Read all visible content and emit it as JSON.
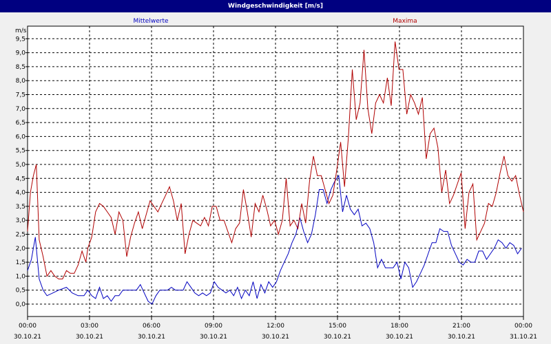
{
  "window": {
    "title": "Windgeschwindigkeit [m/s]"
  },
  "chart_data": {
    "type": "line",
    "title": "Windgeschwindigkeit [m/s]",
    "ylabel": "m/s",
    "ylim": [
      -0.5,
      9.7
    ],
    "grid": true,
    "colors": {
      "Mittelwerte": "#0000c0",
      "Maxima": "#b00000"
    },
    "y_ticks": [
      "0,0",
      "0,5",
      "1,0",
      "1,5",
      "2,0",
      "2,5",
      "3,0",
      "3,5",
      "4,0",
      "4,5",
      "5,0",
      "5,5",
      "6,0",
      "6,5",
      "7,0",
      "7,5",
      "8,0",
      "8,5",
      "9,0",
      "9,5"
    ],
    "x_ticks": [
      {
        "time": "00:00",
        "date": "30.10.21"
      },
      {
        "time": "03:00",
        "date": "30.10.21"
      },
      {
        "time": "06:00",
        "date": "30.10.21"
      },
      {
        "time": "09:00",
        "date": "30.10.21"
      },
      {
        "time": "12:00",
        "date": "30.10.21"
      },
      {
        "time": "15:00",
        "date": "30.10.21"
      },
      {
        "time": "18:00",
        "date": "30.10.21"
      },
      {
        "time": "21:00",
        "date": "30.10.21"
      },
      {
        "time": "00:00",
        "date": "31.10.21"
      }
    ],
    "series": [
      {
        "name": "Mittelwerte",
        "points": [
          [
            0,
            1.2
          ],
          [
            0.2,
            1.6
          ],
          [
            0.4,
            2.4
          ],
          [
            0.6,
            0.9
          ],
          [
            0.8,
            0.5
          ],
          [
            1,
            0.3
          ],
          [
            1.3,
            0.4
          ],
          [
            1.6,
            0.5
          ],
          [
            2,
            0.6
          ],
          [
            2.3,
            0.4
          ],
          [
            2.6,
            0.3
          ],
          [
            2.9,
            0.3
          ],
          [
            3.1,
            0.5
          ],
          [
            3.3,
            0.3
          ],
          [
            3.5,
            0.2
          ],
          [
            3.7,
            0.6
          ],
          [
            3.9,
            0.2
          ],
          [
            4.1,
            0.3
          ],
          [
            4.3,
            0.1
          ],
          [
            4.5,
            0.3
          ],
          [
            4.7,
            0.3
          ],
          [
            4.9,
            0.5
          ],
          [
            5.2,
            0.5
          ],
          [
            5.4,
            0.5
          ],
          [
            5.6,
            0.5
          ],
          [
            5.8,
            0.7
          ],
          [
            6,
            0.4
          ],
          [
            6.2,
            0.1
          ],
          [
            6.4,
            0.0
          ],
          [
            6.6,
            0.3
          ],
          [
            6.8,
            0.5
          ],
          [
            7,
            0.5
          ],
          [
            7.2,
            0.5
          ],
          [
            7.4,
            0.6
          ],
          [
            7.6,
            0.5
          ],
          [
            7.8,
            0.5
          ],
          [
            8,
            0.5
          ],
          [
            8.2,
            0.8
          ],
          [
            8.4,
            0.6
          ],
          [
            8.6,
            0.4
          ],
          [
            8.8,
            0.3
          ],
          [
            9,
            0.4
          ],
          [
            9.2,
            0.3
          ],
          [
            9.4,
            0.4
          ],
          [
            9.6,
            0.8
          ],
          [
            9.8,
            0.6
          ],
          [
            10,
            0.5
          ],
          [
            10.2,
            0.4
          ],
          [
            10.4,
            0.5
          ],
          [
            10.6,
            0.3
          ],
          [
            10.8,
            0.6
          ],
          [
            11,
            0.2
          ],
          [
            11.2,
            0.5
          ],
          [
            11.4,
            0.3
          ],
          [
            11.6,
            0.8
          ],
          [
            11.8,
            0.2
          ],
          [
            12,
            0.7
          ],
          [
            12.2,
            0.4
          ],
          [
            12.4,
            0.8
          ],
          [
            12.6,
            0.6
          ],
          [
            12.8,
            0.8
          ],
          [
            13,
            1.2
          ],
          [
            13.2,
            1.5
          ],
          [
            13.4,
            1.8
          ],
          [
            13.6,
            2.2
          ],
          [
            13.8,
            2.5
          ],
          [
            14,
            3.1
          ],
          [
            14.2,
            2.6
          ],
          [
            14.4,
            2.2
          ],
          [
            14.6,
            2.5
          ],
          [
            14.8,
            3.2
          ],
          [
            15,
            4.1
          ],
          [
            15.2,
            4.1
          ],
          [
            15.4,
            3.6
          ],
          [
            15.6,
            4.1
          ],
          [
            15.8,
            4.4
          ],
          [
            16,
            4.6
          ],
          [
            16.2,
            3.3
          ],
          [
            16.4,
            3.9
          ],
          [
            16.6,
            3.4
          ],
          [
            16.8,
            3.2
          ],
          [
            17,
            3.4
          ],
          [
            17.2,
            2.8
          ],
          [
            17.4,
            2.9
          ],
          [
            17.6,
            2.7
          ],
          [
            17.8,
            2.2
          ],
          [
            18,
            1.3
          ],
          [
            18.2,
            1.6
          ],
          [
            18.4,
            1.3
          ],
          [
            18.6,
            1.3
          ],
          [
            18.8,
            1.3
          ],
          [
            19,
            1.5
          ],
          [
            19.2,
            0.9
          ],
          [
            19.4,
            1.5
          ],
          [
            19.6,
            1.3
          ],
          [
            19.8,
            0.6
          ],
          [
            20,
            0.8
          ],
          [
            20.2,
            1.1
          ],
          [
            20.4,
            1.4
          ],
          [
            20.6,
            1.8
          ],
          [
            20.8,
            2.2
          ],
          [
            21,
            2.2
          ],
          [
            21.2,
            2.7
          ],
          [
            21.4,
            2.6
          ],
          [
            21.6,
            2.6
          ],
          [
            21.8,
            2.1
          ],
          [
            22,
            1.8
          ],
          [
            22.2,
            1.5
          ],
          [
            22.4,
            1.4
          ],
          [
            22.6,
            1.6
          ],
          [
            22.8,
            1.5
          ],
          [
            23,
            1.5
          ],
          [
            23.2,
            1.9
          ],
          [
            23.4,
            1.9
          ],
          [
            23.6,
            1.6
          ],
          [
            23.8,
            1.8
          ],
          [
            24,
            2.0
          ],
          [
            24.2,
            2.3
          ],
          [
            24.4,
            2.2
          ],
          [
            24.6,
            2.0
          ],
          [
            24.8,
            2.2
          ],
          [
            25,
            2.1
          ],
          [
            25.2,
            1.8
          ],
          [
            25.4,
            2.0
          ]
        ]
      },
      {
        "name": "Maxima",
        "points": [
          [
            0,
            2.6
          ],
          [
            0.15,
            4.0
          ],
          [
            0.3,
            4.6
          ],
          [
            0.45,
            5.0
          ],
          [
            0.6,
            2.3
          ],
          [
            0.8,
            1.7
          ],
          [
            1,
            1.0
          ],
          [
            1.2,
            1.2
          ],
          [
            1.4,
            1.0
          ],
          [
            1.6,
            0.9
          ],
          [
            1.8,
            0.9
          ],
          [
            2,
            1.2
          ],
          [
            2.2,
            1.1
          ],
          [
            2.4,
            1.1
          ],
          [
            2.6,
            1.4
          ],
          [
            2.8,
            1.9
          ],
          [
            3,
            1.5
          ],
          [
            3.1,
            2.0
          ],
          [
            3.3,
            2.4
          ],
          [
            3.5,
            3.3
          ],
          [
            3.7,
            3.6
          ],
          [
            3.9,
            3.5
          ],
          [
            4.1,
            3.3
          ],
          [
            4.3,
            3.1
          ],
          [
            4.5,
            2.5
          ],
          [
            4.7,
            3.3
          ],
          [
            4.9,
            3.0
          ],
          [
            5.1,
            1.7
          ],
          [
            5.3,
            2.4
          ],
          [
            5.5,
            2.9
          ],
          [
            5.7,
            3.3
          ],
          [
            5.9,
            2.7
          ],
          [
            6.1,
            3.2
          ],
          [
            6.3,
            3.7
          ],
          [
            6.5,
            3.5
          ],
          [
            6.7,
            3.3
          ],
          [
            6.9,
            3.6
          ],
          [
            7.1,
            3.9
          ],
          [
            7.3,
            4.2
          ],
          [
            7.5,
            3.7
          ],
          [
            7.7,
            3.0
          ],
          [
            7.9,
            3.6
          ],
          [
            8.1,
            1.8
          ],
          [
            8.3,
            2.5
          ],
          [
            8.5,
            3.0
          ],
          [
            8.7,
            2.9
          ],
          [
            8.9,
            2.8
          ],
          [
            9.1,
            3.1
          ],
          [
            9.3,
            2.8
          ],
          [
            9.5,
            3.5
          ],
          [
            9.7,
            3.5
          ],
          [
            9.9,
            3.0
          ],
          [
            10.1,
            3.0
          ],
          [
            10.3,
            2.6
          ],
          [
            10.5,
            2.2
          ],
          [
            10.7,
            2.7
          ],
          [
            10.9,
            2.9
          ],
          [
            11.1,
            4.1
          ],
          [
            11.3,
            3.3
          ],
          [
            11.5,
            2.4
          ],
          [
            11.7,
            3.6
          ],
          [
            11.9,
            3.3
          ],
          [
            12.1,
            3.9
          ],
          [
            12.3,
            3.4
          ],
          [
            12.5,
            2.8
          ],
          [
            12.7,
            3.0
          ],
          [
            12.9,
            2.5
          ],
          [
            13.1,
            3.0
          ],
          [
            13.3,
            4.5
          ],
          [
            13.5,
            2.8
          ],
          [
            13.7,
            3.0
          ],
          [
            13.9,
            2.7
          ],
          [
            14.1,
            3.6
          ],
          [
            14.3,
            2.9
          ],
          [
            14.5,
            4.4
          ],
          [
            14.7,
            5.3
          ],
          [
            14.9,
            4.6
          ],
          [
            15.1,
            4.6
          ],
          [
            15.3,
            4.1
          ],
          [
            15.5,
            3.6
          ],
          [
            15.7,
            3.9
          ],
          [
            15.9,
            4.8
          ],
          [
            16.1,
            5.8
          ],
          [
            16.3,
            4.2
          ],
          [
            16.5,
            6.0
          ],
          [
            16.7,
            8.4
          ],
          [
            16.9,
            6.6
          ],
          [
            17.1,
            7.2
          ],
          [
            17.3,
            9.1
          ],
          [
            17.5,
            7.0
          ],
          [
            17.7,
            6.1
          ],
          [
            17.9,
            7.2
          ],
          [
            18.1,
            7.5
          ],
          [
            18.3,
            7.2
          ],
          [
            18.5,
            8.1
          ],
          [
            18.7,
            7.1
          ],
          [
            18.9,
            9.4
          ],
          [
            19.1,
            8.4
          ],
          [
            19.3,
            8.4
          ],
          [
            19.5,
            6.8
          ],
          [
            19.7,
            7.5
          ],
          [
            19.9,
            7.2
          ],
          [
            20.1,
            6.8
          ],
          [
            20.3,
            7.4
          ],
          [
            20.5,
            5.2
          ],
          [
            20.7,
            6.1
          ],
          [
            20.9,
            6.3
          ],
          [
            21.1,
            5.6
          ],
          [
            21.3,
            4.0
          ],
          [
            21.5,
            4.8
          ],
          [
            21.7,
            3.6
          ],
          [
            21.9,
            3.9
          ],
          [
            22.1,
            4.3
          ],
          [
            22.3,
            4.7
          ],
          [
            22.5,
            2.7
          ],
          [
            22.7,
            4.0
          ],
          [
            22.9,
            4.3
          ],
          [
            23.1,
            2.3
          ],
          [
            23.3,
            2.6
          ],
          [
            23.5,
            2.9
          ],
          [
            23.7,
            3.6
          ],
          [
            23.9,
            3.5
          ],
          [
            24.1,
            4.0
          ],
          [
            24.3,
            4.7
          ],
          [
            24.5,
            5.3
          ],
          [
            24.7,
            4.6
          ],
          [
            24.9,
            4.4
          ],
          [
            25.1,
            4.6
          ],
          [
            25.3,
            3.9
          ],
          [
            25.5,
            3.3
          ]
        ]
      }
    ]
  }
}
